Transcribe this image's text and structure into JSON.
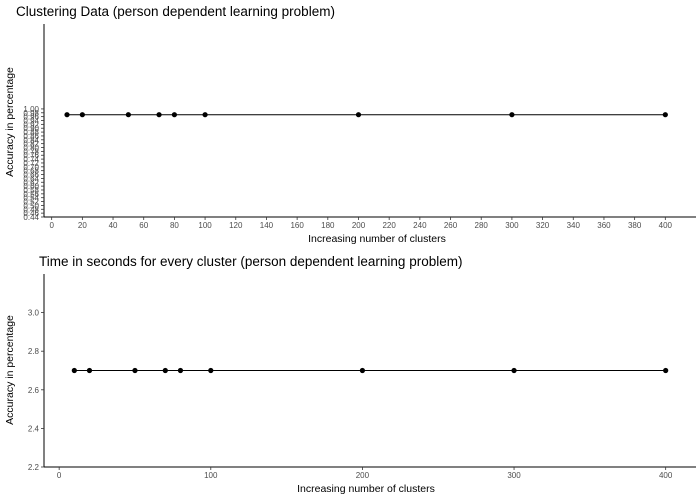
{
  "chart_data": [
    {
      "type": "line",
      "title": "Clustering Data (person dependent learning problem)",
      "xlabel": "Increasing number of clusters",
      "ylabel": "Accuracy in percentage",
      "x_ticks": [
        0,
        20,
        40,
        60,
        80,
        100,
        120,
        140,
        160,
        180,
        200,
        220,
        240,
        260,
        280,
        300,
        320,
        340,
        360,
        380,
        400
      ],
      "xlim": [
        -5,
        420
      ],
      "y_ticks": [
        "0.44",
        "0.46",
        "0.48",
        "0.50",
        "0.52",
        "0.54",
        "0.56",
        "0.58",
        "0.60",
        "0.62",
        "0.64",
        "0.66",
        "0.68",
        "0.70",
        "0.72",
        "0.74",
        "0.76",
        "0.78",
        "0.80",
        "0.82",
        "0.84",
        "0.86",
        "0.88",
        "0.90",
        "0.92",
        "0.94",
        "0.96",
        "0.98",
        "1.00"
      ],
      "ylim": [
        0.44,
        1.44
      ],
      "x": [
        10,
        20,
        50,
        70,
        80,
        100,
        200,
        300,
        400
      ],
      "series": [
        {
          "values": [
            0.97,
            0.97,
            0.97,
            0.97,
            0.97,
            0.97,
            0.97,
            0.97,
            0.97
          ]
        }
      ],
      "grid": false
    },
    {
      "type": "line",
      "title": "Time in seconds for every cluster (person dependent learning problem)",
      "xlabel": "Increasing number of clusters",
      "ylabel": "Accuracy in percentage",
      "x_ticks": [
        0,
        100,
        200,
        300,
        400
      ],
      "xlim": [
        -10,
        420
      ],
      "y_ticks": [
        "2.2",
        "2.4",
        "2.6",
        "2.8",
        "3.0"
      ],
      "ylim": [
        2.2,
        3.2
      ],
      "x": [
        10,
        20,
        50,
        70,
        80,
        100,
        200,
        300,
        400
      ],
      "series": [
        {
          "values": [
            2.7,
            2.7,
            2.7,
            2.7,
            2.7,
            2.7,
            2.7,
            2.7,
            2.7
          ]
        }
      ],
      "grid": false
    }
  ]
}
